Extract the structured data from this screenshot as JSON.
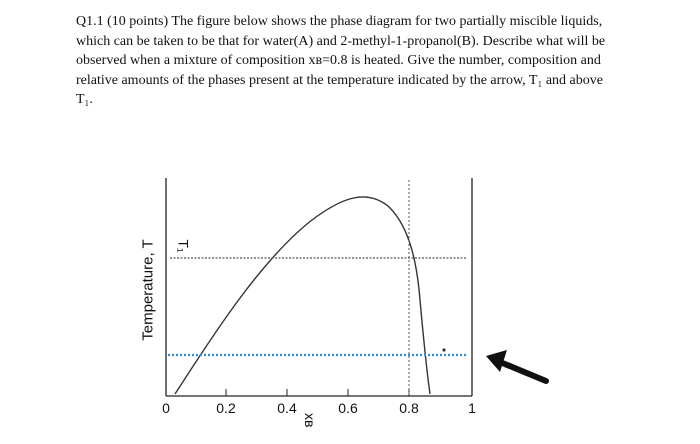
{
  "question": {
    "lines": [
      "Q1.1 (10 points) The figure below shows the phase diagram for two partially miscible liquids,",
      "which can be taken to be that for water(A) and 2-methyl-1-propanol(B). Describe what will be",
      "observed when a mixture of composition xʙ=0.8 is heated. Give the number, composition and",
      "relative amounts of the phases present at the temperature indicated by the arrow, T₁ and above",
      "T₁."
    ]
  },
  "figure": {
    "y_axis_label": "Temperature, T",
    "x_axis_label": "xʙ",
    "x_tick_labels": [
      "0",
      "0.2",
      "0.4",
      "0.6",
      "0.8",
      "1"
    ],
    "temperature_marker_label": "T₁",
    "colors": {
      "curve": "#333333",
      "arrow_line": "#2a8fd6",
      "arrow": "#111111"
    }
  }
}
